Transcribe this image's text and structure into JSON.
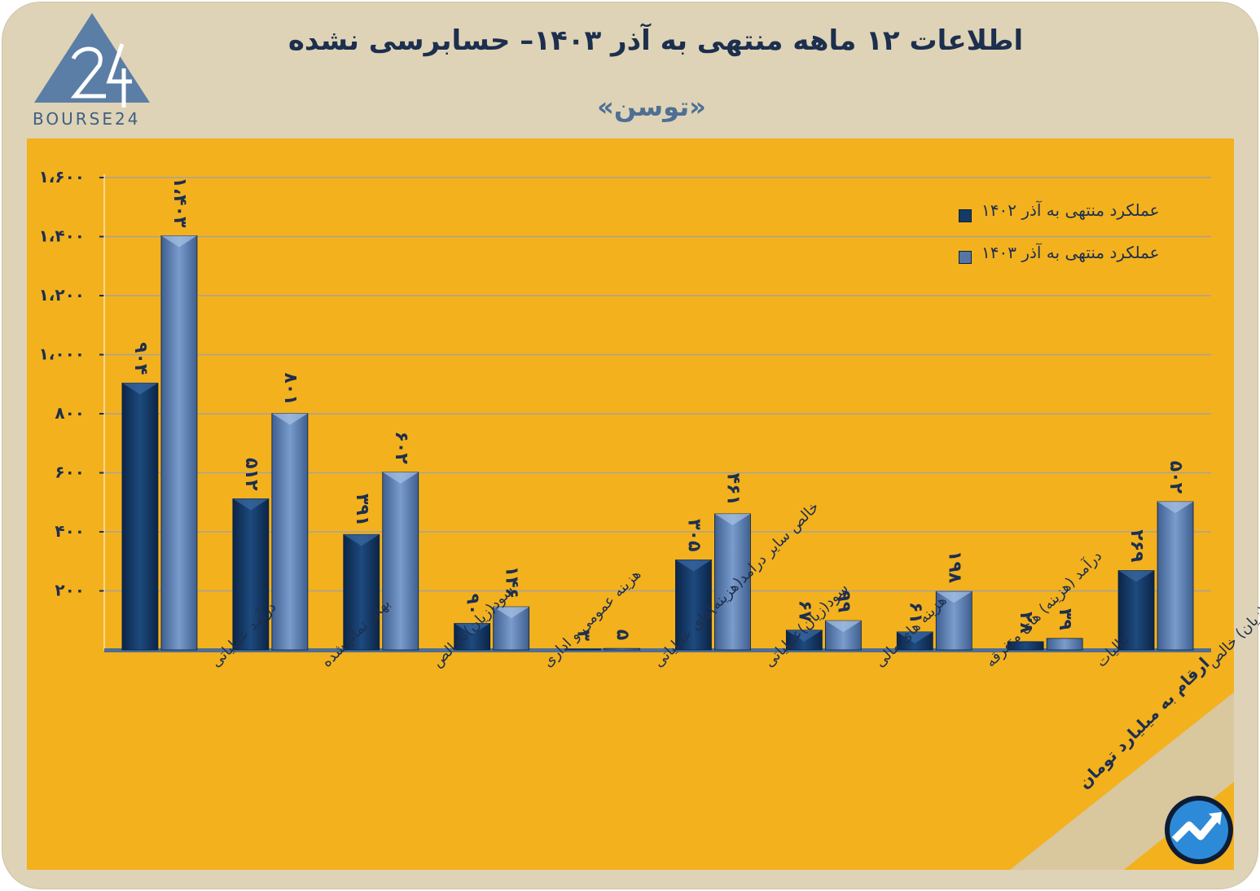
{
  "header": {
    "title": "اطلاعات ۱۲ ماهه منتهی به آذر  ۱۴۰۳– حسابرسی نشده",
    "subtitle": "«توسن»"
  },
  "logo": {
    "text": "BOURSE24"
  },
  "footer": {
    "unit_note": "ارقام به میلیارد تومان"
  },
  "colors": {
    "series1": "#143a66",
    "series2": "#5476a6",
    "panel": "#f3b11e",
    "frame": "#ded3b6",
    "text": "#1d2f4e"
  },
  "chart_data": {
    "type": "bar",
    "title": "اطلاعات ۱۲ ماهه منتهی به آذر  ۱۴۰۳– حسابرسی نشده",
    "xlabel": "",
    "ylabel": "",
    "ylim": [
      0,
      1600
    ],
    "yticks": [
      200,
      400,
      600,
      800,
      1000,
      1200,
      1400,
      1600
    ],
    "ytick_labels": [
      "۲۰۰",
      "۴۰۰",
      "۶۰۰",
      "۸۰۰",
      "۱،۰۰۰",
      "۱،۲۰۰",
      "۱،۴۰۰",
      "۱،۶۰۰"
    ],
    "grid": true,
    "legend_position": "top-right",
    "categories": [
      "درآمد عملیاتی",
      "بهای تمام شده",
      "سود(زیان)ناخالص",
      "هزینه عمومی و اداری",
      "خالص سایر درامد(هزینه)های عملیاتی",
      "سود(زیان)عملیاتی",
      "هزینه های مالی",
      "درآمد (هزینه) های متفرقه",
      "مالیات",
      "سود(زیان) خالص"
    ],
    "series": [
      {
        "name": "عملکرد منتهی به آذر ۱۴۰۲",
        "values": [
          904,
          512,
          391,
          90,
          3,
          305,
          67,
          61,
          28,
          269
        ],
        "labels": [
          "۹۰۴",
          "۵۱۲",
          "۳۹۱",
          "۹۰",
          "۳",
          "۳۰۵",
          "۶۷",
          "۶۱",
          "۲۸",
          "۲۶۹"
        ]
      },
      {
        "name": "عملکرد منتهی به آذر ۱۴۰۳",
        "values": [
          1403,
          801,
          602,
          146,
          5,
          461,
          99,
          198,
          39,
          502
        ],
        "labels": [
          "۱،۴۰۳",
          "۸۰۱",
          "۶۰۲",
          "۱۴۶",
          "۵",
          "۴۶۱",
          "۹۹",
          "۱۹۸",
          "۳۹",
          "۵۰۲"
        ]
      }
    ]
  }
}
